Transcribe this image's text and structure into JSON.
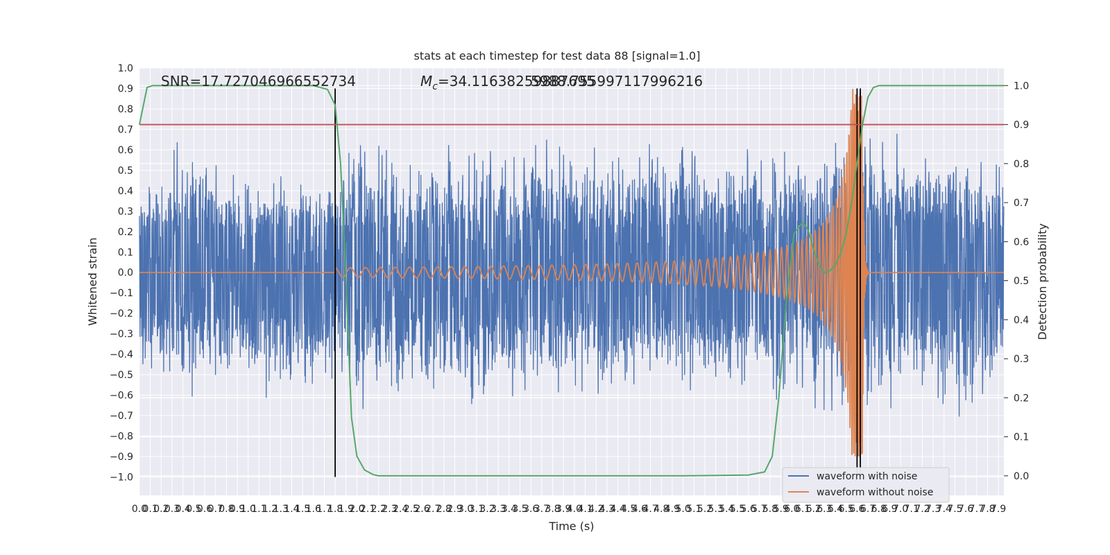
{
  "chart_data": {
    "type": "line",
    "title": "stats at each timestep for test data 88 [signal=1.0]",
    "xlabel": "Time (s)",
    "ylabel_left": "Whitened strain",
    "ylabel_right": "Detection probability",
    "xlim": [
      0.0,
      7.95
    ],
    "ylim_left": [
      -1.09,
      1.0
    ],
    "ylim_right": [
      -0.05,
      1.045
    ],
    "x_ticks": [
      0.0,
      0.1,
      0.2,
      0.3,
      0.4,
      0.5,
      0.6,
      0.7,
      0.8,
      0.9,
      1.0,
      1.1,
      1.2,
      1.3,
      1.4,
      1.5,
      1.6,
      1.7,
      1.8,
      1.9,
      2.0,
      2.1,
      2.2,
      2.3,
      2.4,
      2.5,
      2.6,
      2.7,
      2.8,
      2.9,
      3.0,
      3.1,
      3.2,
      3.3,
      3.4,
      3.5,
      3.6,
      3.7,
      3.8,
      3.9,
      4.0,
      4.1,
      4.2,
      4.3,
      4.4,
      4.5,
      4.6,
      4.7,
      4.8,
      4.9,
      5.0,
      5.1,
      5.2,
      5.3,
      5.4,
      5.5,
      5.6,
      5.7,
      5.8,
      5.9,
      6.0,
      6.1,
      6.2,
      6.3,
      6.4,
      6.5,
      6.6,
      6.7,
      6.8,
      6.9,
      7.0,
      7.1,
      7.2,
      7.3,
      7.4,
      7.5,
      7.6,
      7.7,
      7.8,
      7.9
    ],
    "x_tick_labels": [
      "0.0",
      "0.1",
      "0.2",
      "0.3",
      "0.4",
      "0.5",
      "0.6",
      "0.7",
      "0.8",
      "0.9",
      "1.0",
      "1.1",
      "1.2",
      "1.3",
      "1.4",
      "1.5",
      "1.6",
      "1.7",
      "1.8",
      "1.9",
      "2.0",
      "2.1",
      "2.2",
      "2.3",
      "2.4",
      "2.5",
      "2.6",
      "2.7",
      "2.8",
      "2.9",
      "3.0",
      "3.1",
      "3.2",
      "3.3",
      "3.4",
      "3.5",
      "3.6",
      "3.7",
      "3.8",
      "3.9",
      "4.0",
      "4.1",
      "4.2",
      "4.3",
      "4.4",
      "4.5",
      "4.6",
      "4.7",
      "4.8",
      "4.9",
      "5.0",
      "5.1",
      "5.2",
      "5.3",
      "5.4",
      "5.5",
      "5.6",
      "5.7",
      "5.8",
      "5.9",
      "6.0",
      "6.1",
      "6.2",
      "6.3",
      "6.4",
      "6.5",
      "6.6",
      "6.7",
      "6.8",
      "6.9",
      "7.0",
      "7.1",
      "7.2",
      "7.3",
      "7.4",
      "7.5",
      "7.6",
      "7.7",
      "7.8",
      "7.9"
    ],
    "y_ticks_left": [
      1.0,
      0.9,
      0.8,
      0.7,
      0.6,
      0.5,
      0.4,
      0.3,
      0.2,
      0.1,
      0.0,
      -0.1,
      -0.2,
      -0.3,
      -0.4,
      -0.5,
      -0.6,
      -0.7,
      -0.8,
      -0.9,
      -1.0
    ],
    "y_tick_labels_left": [
      "1.0",
      "0.9",
      "0.8",
      "0.7",
      "0.6",
      "0.5",
      "0.4",
      "0.3",
      "0.2",
      "0.1",
      "0.0",
      "−0.1",
      "−0.2",
      "−0.3",
      "−0.4",
      "−0.5",
      "−0.6",
      "−0.7",
      "−0.8",
      "−0.9",
      "−1.0"
    ],
    "y_ticks_right": [
      1.0,
      0.9,
      0.8,
      0.7,
      0.6,
      0.5,
      0.4,
      0.3,
      0.2,
      0.1,
      0.0
    ],
    "y_tick_labels_right": [
      "1.0",
      "0.9",
      "0.8",
      "0.7",
      "0.6",
      "0.5",
      "0.4",
      "0.3",
      "0.2",
      "0.1",
      "0.0"
    ],
    "grid": true,
    "legend_position": "bottom-right",
    "annotations": {
      "snr": "SNR=17.727046966552734",
      "mc_prefix": "M",
      "mc_subscript": "c",
      "mc_value": "=34.11638259887695",
      "mc_overlap": "5988.755997117996216"
    },
    "series": [
      {
        "name": "waveform with noise",
        "color": "#4c72b0",
        "axis": "left",
        "envelope": [
          [
            0.0,
            0.42,
            -0.44
          ],
          [
            0.2,
            0.55,
            -0.75
          ],
          [
            0.5,
            0.85,
            -0.62
          ],
          [
            0.8,
            0.5,
            -0.55
          ],
          [
            1.2,
            0.5,
            -0.72
          ],
          [
            1.8,
            0.45,
            -0.6
          ],
          [
            2.0,
            0.89,
            -0.85
          ],
          [
            2.5,
            0.6,
            -0.65
          ],
          [
            3.3,
            0.72,
            -0.72
          ],
          [
            4.9,
            0.79,
            -0.65
          ],
          [
            5.5,
            0.74,
            -0.7
          ],
          [
            5.9,
            0.6,
            -0.68
          ],
          [
            6.6,
            0.91,
            -0.9
          ],
          [
            7.1,
            0.7,
            -0.7
          ],
          [
            7.6,
            0.6,
            -0.85
          ],
          [
            7.95,
            0.6,
            -0.6
          ]
        ]
      },
      {
        "name": "waveform without noise",
        "color": "#dd8452",
        "axis": "left",
        "chirp": {
          "start": 1.8,
          "merger": 6.65,
          "peak_amplitude": 0.9,
          "ringdown_end": 6.7
        }
      },
      {
        "name": "",
        "color": "#55a868",
        "axis": "right",
        "x": [
          0.0,
          0.07,
          0.12,
          0.2,
          0.4,
          0.8,
          1.2,
          1.6,
          1.73,
          1.8,
          1.85,
          1.9,
          1.95,
          2.0,
          2.07,
          2.15,
          2.2,
          2.3,
          2.5,
          3.0,
          4.0,
          5.0,
          5.6,
          5.75,
          5.82,
          5.88,
          5.95,
          6.02,
          6.1,
          6.15,
          6.2,
          6.25,
          6.3,
          6.35,
          6.4,
          6.45,
          6.5,
          6.55,
          6.6,
          6.65,
          6.7,
          6.75,
          6.8,
          6.9,
          7.2,
          7.95
        ],
        "y": [
          0.9,
          0.995,
          1.0,
          1.0,
          1.0,
          1.0,
          1.0,
          1.0,
          0.99,
          0.95,
          0.8,
          0.5,
          0.15,
          0.05,
          0.015,
          0.003,
          0.0,
          0.0,
          0.0,
          0.0,
          0.0,
          0.0,
          0.002,
          0.01,
          0.05,
          0.2,
          0.45,
          0.62,
          0.65,
          0.63,
          0.58,
          0.54,
          0.52,
          0.525,
          0.54,
          0.57,
          0.62,
          0.7,
          0.8,
          0.9,
          0.97,
          0.995,
          1.0,
          1.0,
          1.0,
          1.0
        ]
      }
    ],
    "threshold_line": {
      "value": 0.9,
      "color": "#c44e52",
      "axis": "right"
    },
    "vertical_lines": [
      1.8,
      6.6,
      6.63
    ],
    "vertical_line_color": "#000000"
  }
}
